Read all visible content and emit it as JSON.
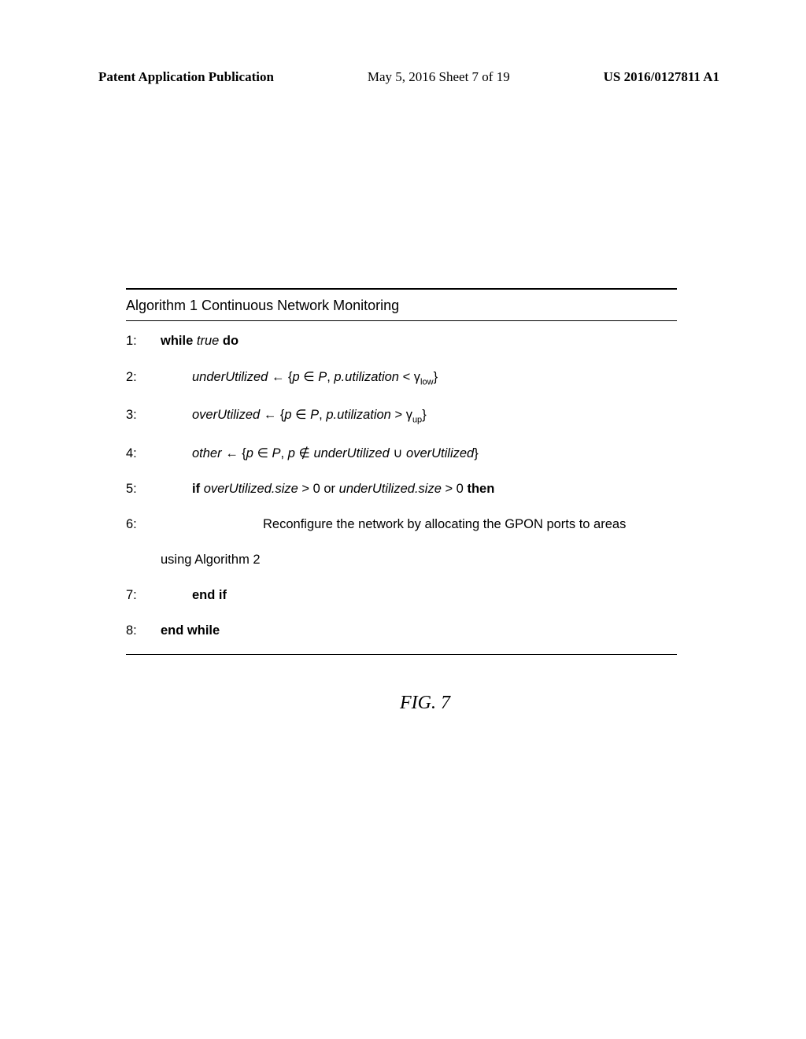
{
  "header": {
    "left": "Patent Application Publication",
    "center": "May 5, 2016  Sheet 7 of 19",
    "right": "US 2016/0127811 A1"
  },
  "algorithm": {
    "title": "Algorithm 1 Continuous Network Monitoring",
    "lines": {
      "l1": {
        "num": "1:",
        "kw1": "while",
        "it1": "true",
        "kw2": "do"
      },
      "l2": {
        "num": "2:",
        "var": "underUtilized",
        "arrow": " ← {",
        "p": "p",
        "el": " ∈ ",
        "P": "P",
        "comma": ", ",
        "util": "p.utilization",
        "op": " < ",
        "gamma": "γ",
        "sub": "low",
        "close": "}"
      },
      "l3": {
        "num": "3:",
        "var": "overUtilized",
        "arrow": " ← {",
        "p": "p",
        "el": " ∈ ",
        "P": "P",
        "comma": ", ",
        "util": "p.utilization",
        "op": " > ",
        "gamma": "γ",
        "sub": "up",
        "close": "}"
      },
      "l4": {
        "num": "4:",
        "var": "other",
        "arrow": " ← {",
        "p": "p",
        "el": " ∈ ",
        "P": "P",
        "comma": ", ",
        "p2": "p",
        "notin": " ∉ ",
        "uu": "underUtilized",
        "cup": " ∪ ",
        "ou": "overUtilized",
        "close": "}"
      },
      "l5": {
        "num": "5:",
        "kw1": "if",
        "ov": "overUtilized.size",
        "gt1": " > 0 or ",
        "uu": "underUtilized.size",
        "gt2": " > 0 ",
        "kw2": "then"
      },
      "l6": {
        "num": "6:",
        "text": "Reconfigure the network by allocating the GPON ports to areas"
      },
      "l6b": {
        "text": "using Algorithm 2"
      },
      "l7": {
        "num": "7:",
        "kw": "end if"
      },
      "l8": {
        "num": "8:",
        "kw": "end while"
      }
    }
  },
  "caption": "FIG. 7"
}
